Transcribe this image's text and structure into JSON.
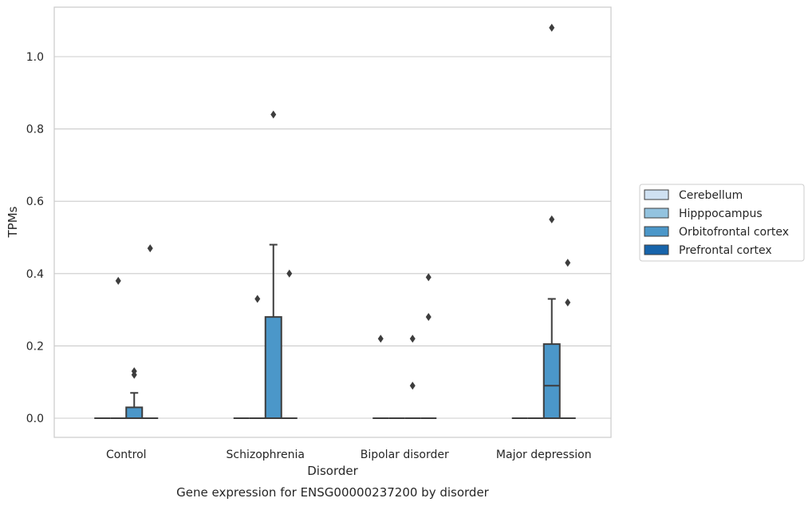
{
  "chart_data": {
    "type": "box",
    "xlabel": "Disorder",
    "ylabel": "TPMs",
    "caption": "Gene expression for ENSG00000237200 by disorder",
    "ylim": [
      -0.052,
      1.135
    ],
    "yticks": [
      0.0,
      0.2,
      0.4,
      0.6,
      0.8,
      1.0
    ],
    "ytick_labels": [
      "0.0",
      "0.2",
      "0.4",
      "0.6",
      "0.8",
      "1.0"
    ],
    "grid": "horizontal",
    "legend_position": "right-center",
    "categories": [
      "Control",
      "Schizophrenia",
      "Bipolar disorder",
      "Major depression"
    ],
    "series": [
      {
        "name": "Cerebellum",
        "color": "#cfe1f2",
        "boxes": [
          {
            "q1": 0,
            "median": 0,
            "q3": 0,
            "whisker_low": 0,
            "whisker_high": 0,
            "outliers": []
          },
          {
            "q1": 0,
            "median": 0,
            "q3": 0,
            "whisker_low": 0,
            "whisker_high": 0,
            "outliers": []
          },
          {
            "q1": 0,
            "median": 0,
            "q3": 0,
            "whisker_low": 0,
            "whisker_high": 0,
            "outliers": [
              0.22
            ]
          },
          {
            "q1": 0,
            "median": 0,
            "q3": 0,
            "whisker_low": 0,
            "whisker_high": 0,
            "outliers": []
          }
        ]
      },
      {
        "name": "Hipppocampus",
        "color": "#93c3df",
        "boxes": [
          {
            "q1": 0,
            "median": 0,
            "q3": 0,
            "whisker_low": 0,
            "whisker_high": 0,
            "outliers": [
              0.38
            ]
          },
          {
            "q1": 0,
            "median": 0,
            "q3": 0,
            "whisker_low": 0,
            "whisker_high": 0,
            "outliers": [
              0.33
            ]
          },
          {
            "q1": 0,
            "median": 0,
            "q3": 0,
            "whisker_low": 0,
            "whisker_high": 0,
            "outliers": []
          },
          {
            "q1": 0,
            "median": 0,
            "q3": 0,
            "whisker_low": 0,
            "whisker_high": 0,
            "outliers": []
          }
        ]
      },
      {
        "name": "Orbitofrontal cortex",
        "color": "#4b97c9",
        "boxes": [
          {
            "q1": 0,
            "median": 0,
            "q3": 0.03,
            "whisker_low": 0,
            "whisker_high": 0.07,
            "outliers": [
              0.12,
              0.13
            ]
          },
          {
            "q1": 0,
            "median": 0,
            "q3": 0.28,
            "whisker_low": 0,
            "whisker_high": 0.48,
            "outliers": [
              0.84
            ]
          },
          {
            "q1": 0,
            "median": 0,
            "q3": 0,
            "whisker_low": 0,
            "whisker_high": 0,
            "outliers": [
              0.09,
              0.22
            ]
          },
          {
            "q1": 0,
            "median": 0.09,
            "q3": 0.205,
            "whisker_low": 0,
            "whisker_high": 0.33,
            "outliers": [
              0.55,
              1.08
            ]
          }
        ]
      },
      {
        "name": "Prefrontal cortex",
        "color": "#1764ab",
        "boxes": [
          {
            "q1": 0,
            "median": 0,
            "q3": 0,
            "whisker_low": 0,
            "whisker_high": 0,
            "outliers": [
              0.47
            ]
          },
          {
            "q1": 0,
            "median": 0,
            "q3": 0,
            "whisker_low": 0,
            "whisker_high": 0,
            "outliers": [
              0.4
            ]
          },
          {
            "q1": 0,
            "median": 0,
            "q3": 0,
            "whisker_low": 0,
            "whisker_high": 0,
            "outliers": [
              0.28,
              0.39
            ]
          },
          {
            "q1": 0,
            "median": 0,
            "q3": 0,
            "whisker_low": 0,
            "whisker_high": 0,
            "outliers": [
              0.32,
              0.43
            ]
          }
        ]
      }
    ]
  }
}
